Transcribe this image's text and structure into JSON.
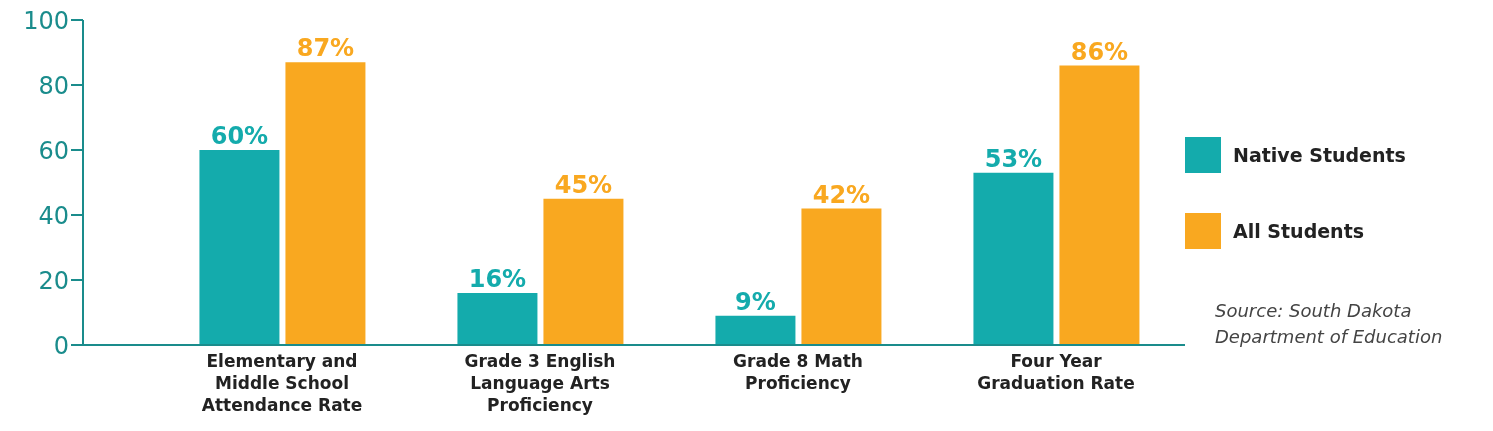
{
  "chart_data": {
    "type": "bar",
    "categories": [
      "Elementary and Middle School Attendance Rate",
      "Grade 3 English Language Arts Proficiency",
      "Grade 8 Math Proficiency",
      "Four Year Graduation Rate"
    ],
    "series": [
      {
        "name": "Native Students",
        "color": "#14abac",
        "values": [
          60,
          16,
          9,
          53
        ],
        "value_labels": [
          "60%",
          "16%",
          "9%",
          "53%"
        ]
      },
      {
        "name": "All Students",
        "color": "#f9a820",
        "values": [
          87,
          45,
          42,
          86
        ],
        "value_labels": [
          "87%",
          "45%",
          "42%",
          "86%"
        ]
      }
    ],
    "ylim": [
      0,
      100
    ],
    "yticks": [
      0,
      20,
      40,
      60,
      80,
      100
    ],
    "legend": "right",
    "annotations": [
      "Source: South Dakota Department of Education"
    ]
  }
}
